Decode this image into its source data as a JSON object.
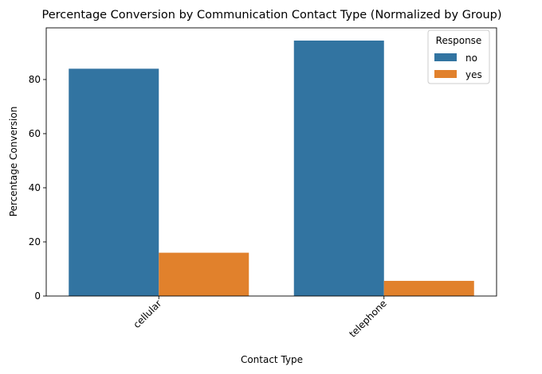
{
  "chart_data": {
    "type": "bar",
    "title": "Percentage Conversion by Communication Contact Type (Normalized by Group)",
    "xlabel": "Contact Type",
    "ylabel": "Percentage Conversion",
    "categories": [
      "cellular",
      "telephone"
    ],
    "series": [
      {
        "name": "no",
        "values": [
          84.0,
          94.4
        ],
        "color": "#3274a1"
      },
      {
        "name": "yes",
        "values": [
          16.0,
          5.6
        ],
        "color": "#e1812c"
      }
    ],
    "ylim": [
      0,
      99.1
    ],
    "yticks": [
      0,
      20,
      40,
      60,
      80
    ],
    "xtick_rotation": 45,
    "legend": {
      "title": "Response",
      "placement": "top-right"
    },
    "grid": false
  }
}
